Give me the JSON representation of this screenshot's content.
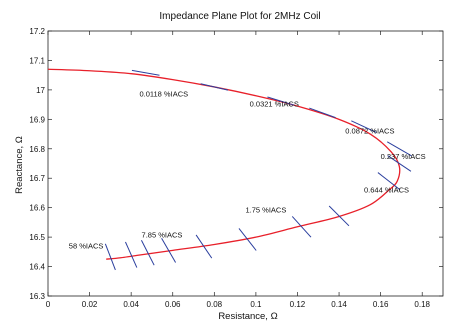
{
  "chart_data": {
    "type": "line",
    "title": "Impedance Plane Plot for 2MHz Coil",
    "xlabel": "Resistance, Ω",
    "ylabel": "Reactance, Ω",
    "xlim": [
      0,
      0.19
    ],
    "ylim": [
      16.3,
      17.2
    ],
    "x_ticks": [
      "0",
      "0.02",
      "0.04",
      "0.06",
      "0.08",
      "0.1",
      "0.12",
      "0.14",
      "0.16",
      "0.18"
    ],
    "y_ticks": [
      "16.3",
      "16.4",
      "16.5",
      "16.6",
      "16.7",
      "16.8",
      "16.9",
      "17",
      "17.1",
      "17.2"
    ],
    "grid": false,
    "colors": {
      "curve": "#e8202a",
      "ticks": "#2b3f9e"
    },
    "series": [
      {
        "x": [
          0,
          0.02,
          0.04,
          0.06,
          0.08,
          0.1,
          0.12,
          0.14,
          0.155,
          0.165,
          0.169,
          0.168,
          0.164,
          0.155,
          0.14,
          0.12,
          0.1,
          0.08,
          0.06,
          0.045,
          0.035,
          0.028
        ],
        "y": [
          17.07,
          17.065,
          17.055,
          17.035,
          17.01,
          16.98,
          16.945,
          16.9,
          16.85,
          16.79,
          16.74,
          16.69,
          16.66,
          16.61,
          16.57,
          16.535,
          16.5,
          16.475,
          16.455,
          16.44,
          16.43,
          16.425
        ]
      }
    ],
    "markers": [
      {
        "x": 0.047,
        "y": 17.058,
        "angle": -10
      },
      {
        "x": 0.08,
        "y": 17.01,
        "angle": -13
      },
      {
        "x": 0.112,
        "y": 16.962,
        "angle": -17
      },
      {
        "x": 0.132,
        "y": 16.922,
        "angle": -20
      },
      {
        "x": 0.152,
        "y": 16.875,
        "angle": -25
      },
      {
        "x": 0.169,
        "y": 16.8,
        "angle": -30
      },
      {
        "x": 0.169,
        "y": 16.75,
        "angle": -34
      },
      {
        "x": 0.164,
        "y": 16.69,
        "angle": -38
      },
      {
        "x": 0.14,
        "y": 16.572,
        "angle": -45
      },
      {
        "x": 0.122,
        "y": 16.535,
        "angle": -48
      },
      {
        "x": 0.096,
        "y": 16.492,
        "angle": -52
      },
      {
        "x": 0.075,
        "y": 16.468,
        "angle": -56
      },
      {
        "x": 0.058,
        "y": 16.455,
        "angle": -60
      },
      {
        "x": 0.048,
        "y": 16.447,
        "angle": -63
      },
      {
        "x": 0.04,
        "y": 16.44,
        "angle": -66
      },
      {
        "x": 0.03,
        "y": 16.433,
        "angle": -69
      }
    ],
    "annotations": [
      {
        "text": "0.0118 %IACS",
        "x": 0.044,
        "y": 16.978
      },
      {
        "text": "0.0321 %IACS",
        "x": 0.097,
        "y": 16.943
      },
      {
        "text": "0.0872 %IACS",
        "x": 0.143,
        "y": 16.852
      },
      {
        "text": "0.237 %IACS",
        "x": 0.16,
        "y": 16.765
      },
      {
        "text": "0.644 %IACS",
        "x": 0.152,
        "y": 16.652
      },
      {
        "text": "1.75 %IACS",
        "x": 0.095,
        "y": 16.583
      },
      {
        "text": "7.85 %IACS",
        "x": 0.045,
        "y": 16.498
      },
      {
        "text": "58 %IACS",
        "x": 0.01,
        "y": 16.462
      }
    ]
  }
}
